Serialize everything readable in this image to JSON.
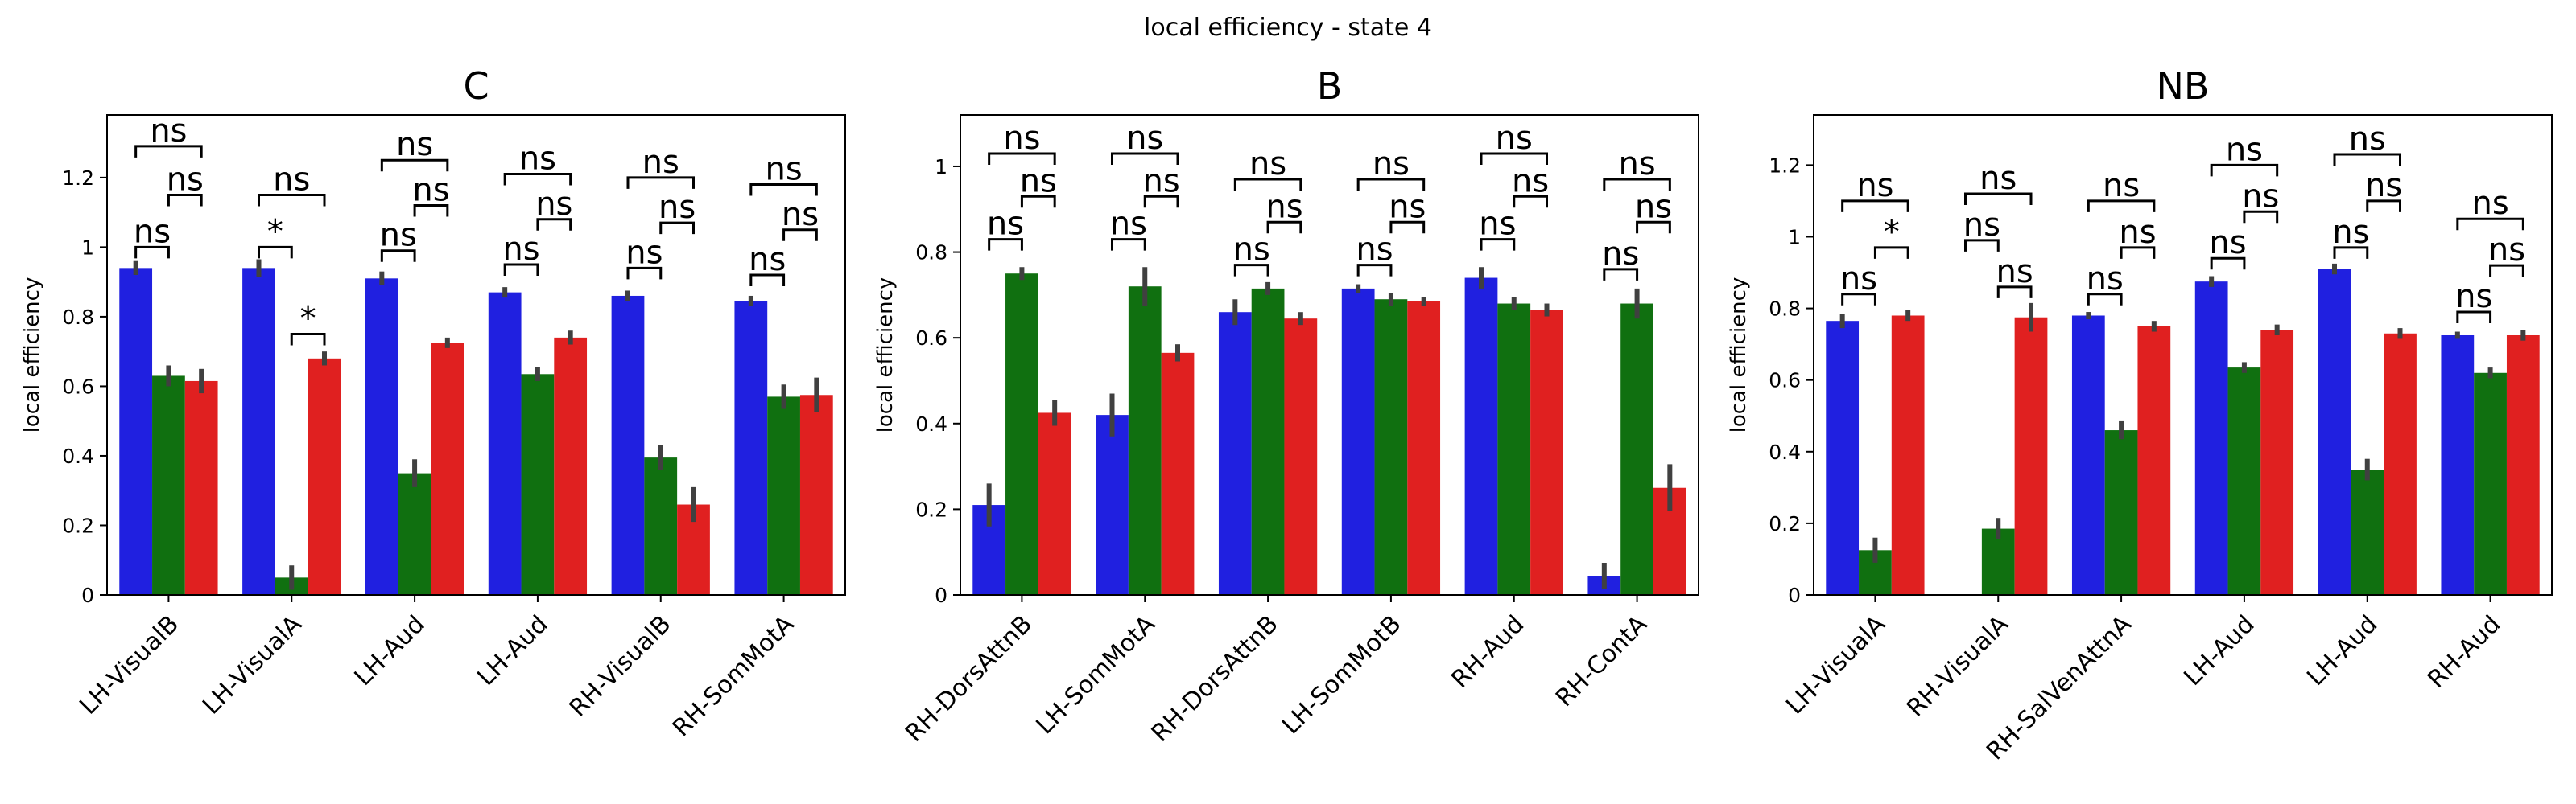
{
  "figure": {
    "suptitle": "local efficiency - state 4"
  },
  "chart_data": [
    {
      "type": "bar",
      "title": "C",
      "xlabel": "",
      "ylabel": "local efficiency",
      "ylim": [
        0,
        1.38
      ],
      "yticks": [
        0.0,
        0.2,
        0.4,
        0.6,
        0.8,
        1.0,
        1.2
      ],
      "grid": false,
      "categories": [
        "LH-VisualB",
        "LH-VisualA",
        "LH-Aud",
        "LH-Aud",
        "RH-VisualB",
        "RH-SomMotA"
      ],
      "series": [
        {
          "color": "#2020e0",
          "values": [
            0.94,
            0.94,
            0.91,
            0.87,
            0.86,
            0.845
          ],
          "errors": [
            0.02,
            0.025,
            0.02,
            0.015,
            0.015,
            0.015
          ]
        },
        {
          "color": "#107010",
          "values": [
            0.63,
            0.05,
            0.35,
            0.635,
            0.395,
            0.57
          ],
          "errors": [
            0.03,
            0.035,
            0.04,
            0.02,
            0.035,
            0.035
          ]
        },
        {
          "color": "#e02020",
          "values": [
            0.615,
            0.68,
            0.725,
            0.74,
            0.26,
            0.575
          ],
          "errors": [
            0.035,
            0.02,
            0.015,
            0.02,
            0.05,
            0.05
          ]
        }
      ],
      "annotations": [
        {
          "category": 0,
          "pair": [
            0,
            1
          ],
          "label": "ns",
          "level": 1.0
        },
        {
          "category": 0,
          "pair": [
            1,
            2
          ],
          "label": "ns",
          "level": 1.15
        },
        {
          "category": 0,
          "pair": [
            0,
            2
          ],
          "label": "ns",
          "level": 1.29
        },
        {
          "category": 1,
          "pair": [
            0,
            1
          ],
          "label": "*",
          "level": 1.0
        },
        {
          "category": 1,
          "pair": [
            1,
            2
          ],
          "label": "*",
          "level": 0.75
        },
        {
          "category": 1,
          "pair": [
            0,
            2
          ],
          "label": "ns",
          "level": 1.15
        },
        {
          "category": 2,
          "pair": [
            0,
            1
          ],
          "label": "ns",
          "level": 0.99
        },
        {
          "category": 2,
          "pair": [
            1,
            2
          ],
          "label": "ns",
          "level": 1.12
        },
        {
          "category": 2,
          "pair": [
            0,
            2
          ],
          "label": "ns",
          "level": 1.25
        },
        {
          "category": 3,
          "pair": [
            0,
            1
          ],
          "label": "ns",
          "level": 0.95
        },
        {
          "category": 3,
          "pair": [
            1,
            2
          ],
          "label": "ns",
          "level": 1.08
        },
        {
          "category": 3,
          "pair": [
            0,
            2
          ],
          "label": "ns",
          "level": 1.21
        },
        {
          "category": 4,
          "pair": [
            0,
            1
          ],
          "label": "ns",
          "level": 0.94
        },
        {
          "category": 4,
          "pair": [
            1,
            2
          ],
          "label": "ns",
          "level": 1.07
        },
        {
          "category": 4,
          "pair": [
            0,
            2
          ],
          "label": "ns",
          "level": 1.2
        },
        {
          "category": 5,
          "pair": [
            0,
            1
          ],
          "label": "ns",
          "level": 0.92
        },
        {
          "category": 5,
          "pair": [
            1,
            2
          ],
          "label": "ns",
          "level": 1.05
        },
        {
          "category": 5,
          "pair": [
            0,
            2
          ],
          "label": "ns",
          "level": 1.18
        }
      ]
    },
    {
      "type": "bar",
      "title": "B",
      "xlabel": "",
      "ylabel": "local efficiency",
      "ylim": [
        0,
        1.12
      ],
      "yticks": [
        0.0,
        0.2,
        0.4,
        0.6,
        0.8,
        1.0
      ],
      "grid": false,
      "categories": [
        "RH-DorsAttnB",
        "LH-SomMotA",
        "RH-DorsAttnB",
        "LH-SomMotB",
        "RH-Aud",
        "RH-ContA"
      ],
      "series": [
        {
          "color": "#2020e0",
          "values": [
            0.21,
            0.42,
            0.66,
            0.715,
            0.74,
            0.045
          ],
          "errors": [
            0.05,
            0.05,
            0.03,
            0.01,
            0.025,
            0.03
          ]
        },
        {
          "color": "#107010",
          "values": [
            0.75,
            0.72,
            0.715,
            0.69,
            0.68,
            0.68
          ],
          "errors": [
            0.015,
            0.045,
            0.015,
            0.015,
            0.015,
            0.035
          ]
        },
        {
          "color": "#e02020",
          "values": [
            0.425,
            0.565,
            0.645,
            0.685,
            0.665,
            0.25
          ],
          "errors": [
            0.03,
            0.02,
            0.015,
            0.01,
            0.015,
            0.055
          ]
        }
      ],
      "annotations": [
        {
          "category": 0,
          "pair": [
            0,
            1
          ],
          "label": "ns",
          "level": 0.83
        },
        {
          "category": 0,
          "pair": [
            1,
            2
          ],
          "label": "ns",
          "level": 0.93
        },
        {
          "category": 0,
          "pair": [
            0,
            2
          ],
          "label": "ns",
          "level": 1.03
        },
        {
          "category": 1,
          "pair": [
            0,
            1
          ],
          "label": "ns",
          "level": 0.83
        },
        {
          "category": 1,
          "pair": [
            1,
            2
          ],
          "label": "ns",
          "level": 0.93
        },
        {
          "category": 1,
          "pair": [
            0,
            2
          ],
          "label": "ns",
          "level": 1.03
        },
        {
          "category": 2,
          "pair": [
            0,
            1
          ],
          "label": "ns",
          "level": 0.77
        },
        {
          "category": 2,
          "pair": [
            1,
            2
          ],
          "label": "ns",
          "level": 0.87
        },
        {
          "category": 2,
          "pair": [
            0,
            2
          ],
          "label": "ns",
          "level": 0.97
        },
        {
          "category": 3,
          "pair": [
            0,
            1
          ],
          "label": "ns",
          "level": 0.77
        },
        {
          "category": 3,
          "pair": [
            1,
            2
          ],
          "label": "ns",
          "level": 0.87
        },
        {
          "category": 3,
          "pair": [
            0,
            2
          ],
          "label": "ns",
          "level": 0.97
        },
        {
          "category": 4,
          "pair": [
            0,
            1
          ],
          "label": "ns",
          "level": 0.83
        },
        {
          "category": 4,
          "pair": [
            1,
            2
          ],
          "label": "ns",
          "level": 0.93
        },
        {
          "category": 4,
          "pair": [
            0,
            2
          ],
          "label": "ns",
          "level": 1.03
        },
        {
          "category": 5,
          "pair": [
            0,
            1
          ],
          "label": "ns",
          "level": 0.76
        },
        {
          "category": 5,
          "pair": [
            1,
            2
          ],
          "label": "ns",
          "level": 0.87
        },
        {
          "category": 5,
          "pair": [
            0,
            2
          ],
          "label": "ns",
          "level": 0.97
        }
      ]
    },
    {
      "type": "bar",
      "title": "NB",
      "xlabel": "",
      "ylabel": "local efficiency",
      "ylim": [
        0,
        1.34
      ],
      "yticks": [
        0.0,
        0.2,
        0.4,
        0.6,
        0.8,
        1.0,
        1.2
      ],
      "grid": false,
      "categories": [
        "LH-VisualA",
        "RH-VisualA",
        "RH-SalVenAttnA",
        "LH-Aud",
        "LH-Aud",
        "RH-Aud"
      ],
      "series": [
        {
          "color": "#2020e0",
          "values": [
            0.765,
            0.0,
            0.78,
            0.875,
            0.91,
            0.725
          ],
          "errors": [
            0.02,
            0.0,
            0.01,
            0.015,
            0.015,
            0.01
          ]
        },
        {
          "color": "#107010",
          "values": [
            0.125,
            0.185,
            0.46,
            0.635,
            0.35,
            0.62
          ],
          "errors": [
            0.035,
            0.03,
            0.025,
            0.015,
            0.03,
            0.015
          ]
        },
        {
          "color": "#e02020",
          "values": [
            0.78,
            0.775,
            0.75,
            0.74,
            0.73,
            0.725
          ],
          "errors": [
            0.015,
            0.04,
            0.015,
            0.015,
            0.015,
            0.015
          ]
        }
      ],
      "annotations": [
        {
          "category": 0,
          "pair": [
            0,
            1
          ],
          "label": "ns",
          "level": 0.84
        },
        {
          "category": 0,
          "pair": [
            1,
            2
          ],
          "label": "*",
          "level": 0.97
        },
        {
          "category": 0,
          "pair": [
            0,
            2
          ],
          "label": "ns",
          "level": 1.1
        },
        {
          "category": 1,
          "pair": [
            0,
            1
          ],
          "label": "ns",
          "level": 0.99
        },
        {
          "category": 1,
          "pair": [
            1,
            2
          ],
          "label": "ns",
          "level": 0.86
        },
        {
          "category": 1,
          "pair": [
            0,
            2
          ],
          "label": "ns",
          "level": 1.12
        },
        {
          "category": 2,
          "pair": [
            0,
            1
          ],
          "label": "ns",
          "level": 0.84
        },
        {
          "category": 2,
          "pair": [
            1,
            2
          ],
          "label": "ns",
          "level": 0.97
        },
        {
          "category": 2,
          "pair": [
            0,
            2
          ],
          "label": "ns",
          "level": 1.1
        },
        {
          "category": 3,
          "pair": [
            0,
            1
          ],
          "label": "ns",
          "level": 0.94
        },
        {
          "category": 3,
          "pair": [
            1,
            2
          ],
          "label": "ns",
          "level": 1.07
        },
        {
          "category": 3,
          "pair": [
            0,
            2
          ],
          "label": "ns",
          "level": 1.2
        },
        {
          "category": 4,
          "pair": [
            0,
            1
          ],
          "label": "ns",
          "level": 0.97
        },
        {
          "category": 4,
          "pair": [
            1,
            2
          ],
          "label": "ns",
          "level": 1.1
        },
        {
          "category": 4,
          "pair": [
            0,
            2
          ],
          "label": "ns",
          "level": 1.23
        },
        {
          "category": 5,
          "pair": [
            0,
            1
          ],
          "label": "ns",
          "level": 0.79
        },
        {
          "category": 5,
          "pair": [
            1,
            2
          ],
          "label": "ns",
          "level": 0.92
        },
        {
          "category": 5,
          "pair": [
            0,
            2
          ],
          "label": "ns",
          "level": 1.05
        }
      ]
    }
  ]
}
